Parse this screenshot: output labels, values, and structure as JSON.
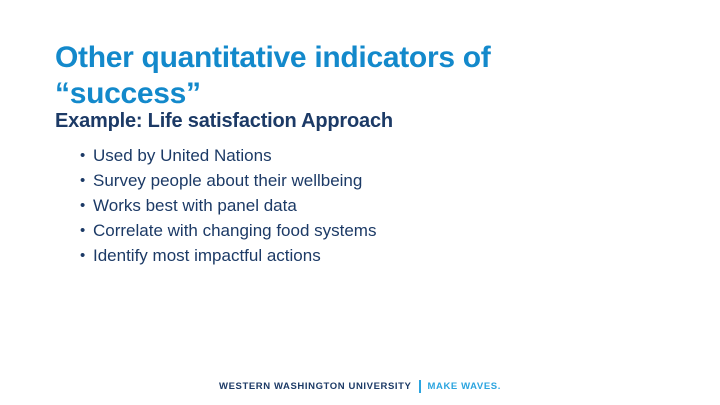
{
  "slide": {
    "title": "Other quantitative indicators of “success”",
    "example_heading": "Example: Life satisfaction Approach",
    "bullets": [
      "Used by United Nations",
      "Survey people about their wellbeing",
      "Works best with panel data",
      "Correlate with changing food systems",
      "Identify most impactful actions"
    ],
    "footer": {
      "university": "WESTERN WASHINGTON UNIVERSITY",
      "separator": "|",
      "tagline": "MAKE WAVES."
    },
    "colors": {
      "title_blue": "#1389CB",
      "body_navy": "#1C3A66",
      "tagline_blue": "#2BA4DF",
      "background": "#FFFFFF"
    }
  }
}
